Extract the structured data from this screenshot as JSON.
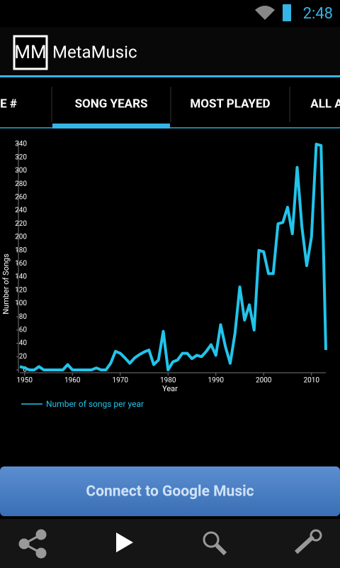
{
  "status_bar": {
    "time": "2:48"
  },
  "action_bar": {
    "logo": "MM",
    "title": "MetaMusic"
  },
  "tabs": [
    "E #",
    "SONG YEARS",
    "MOST PLAYED",
    "ALL A"
  ],
  "chart_data": {
    "type": "line",
    "x_label": "Year",
    "y_label": "Number of Songs",
    "x": [
      1949,
      1950,
      1951,
      1952,
      1953,
      1954,
      1955,
      1956,
      1957,
      1958,
      1959,
      1960,
      1961,
      1962,
      1963,
      1964,
      1965,
      1966,
      1967,
      1968,
      1969,
      1970,
      1971,
      1972,
      1973,
      1974,
      1975,
      1976,
      1977,
      1978,
      1979,
      1980,
      1981,
      1982,
      1983,
      1984,
      1985,
      1986,
      1987,
      1988,
      1989,
      1990,
      1991,
      1992,
      1993,
      1994,
      1995,
      1996,
      1997,
      1998,
      1999,
      2000,
      2001,
      2002,
      2003,
      2004,
      2005,
      2006,
      2007,
      2008,
      2009,
      2010,
      2011,
      2012,
      2013
    ],
    "series": [
      {
        "name": "Number of songs per year",
        "color": "#22c4ea",
        "values": [
          5,
          3,
          0,
          0,
          5,
          0,
          0,
          0,
          0,
          0,
          8,
          0,
          0,
          0,
          0,
          0,
          3,
          0,
          0,
          10,
          28,
          25,
          18,
          10,
          18,
          23,
          27,
          30,
          8,
          15,
          58,
          0,
          12,
          15,
          25,
          25,
          17,
          22,
          20,
          28,
          38,
          22,
          68,
          35,
          10,
          55,
          125,
          75,
          98,
          60,
          180,
          178,
          145,
          145,
          220,
          222,
          245,
          205,
          305,
          215,
          157,
          200,
          340,
          338,
          30
        ]
      }
    ],
    "xlim": [
      1949,
      2013
    ],
    "ylim": [
      0,
      340
    ],
    "xticks": [
      1950,
      1960,
      1970,
      1980,
      1990,
      2000,
      2010
    ],
    "yticks": [
      0,
      20,
      40,
      60,
      80,
      100,
      120,
      140,
      160,
      180,
      200,
      220,
      240,
      260,
      280,
      300,
      320,
      340
    ]
  },
  "button": "Connect to Google Music"
}
